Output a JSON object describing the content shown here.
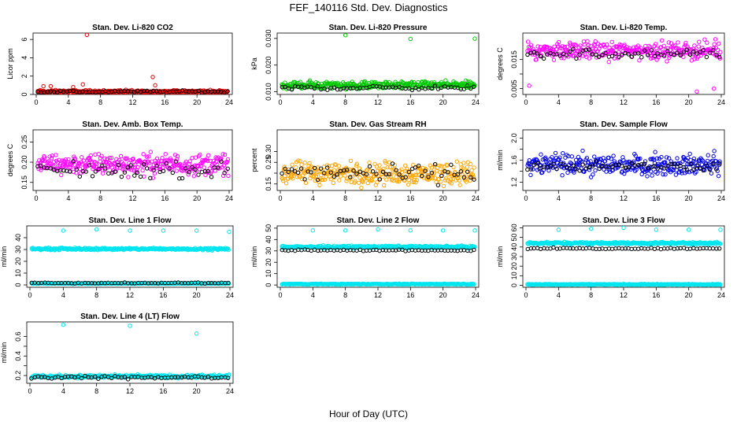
{
  "title": "FEF_140116  Std. Dev. Diagnostics",
  "xlabel": "Hour of Day (UTC)",
  "colors": {
    "red": "#e00000",
    "green": "#00c800",
    "magenta": "#ff00ff",
    "orange": "#ffa500",
    "blue": "#0000e6",
    "cyan": "#00e5ee",
    "black": "#000000"
  },
  "chart_data": [
    {
      "type": "scatter",
      "title": "Stan. Dev. Li-820 CO2",
      "ylabel": "Licor ppm",
      "xlim": [
        0,
        24
      ],
      "ylim": [
        0,
        6.7
      ],
      "xticks": [
        0,
        4,
        8,
        12,
        16,
        20,
        24
      ],
      "yticks": [
        0,
        2,
        4,
        6
      ],
      "xtick_labels": [
        "0",
        "4",
        "8",
        "12",
        "16",
        "20",
        "24"
      ],
      "ytick_labels": [
        "0",
        "2",
        "4",
        "6"
      ],
      "series": [
        {
          "color": "red",
          "base": 0.3,
          "spread": 0.15,
          "outliers": [
            [
              0.9,
              0.9
            ],
            [
              1.8,
              0.9
            ],
            [
              4.6,
              0.8
            ],
            [
              5.8,
              1.1
            ],
            [
              6.3,
              6.5
            ],
            [
              14.5,
              1.9
            ],
            [
              14.8,
              1.0
            ]
          ]
        },
        {
          "color": "black",
          "base": 0.3,
          "spread": 0.1,
          "outliers": []
        }
      ]
    },
    {
      "type": "scatter",
      "title": "Stan. Dev. Li-820 Pressure",
      "ylabel": "kPa",
      "xlim": [
        0,
        24
      ],
      "ylim": [
        0.009,
        0.032
      ],
      "xticks": [
        0,
        4,
        8,
        12,
        16,
        20,
        24
      ],
      "yticks": [
        0.01,
        0.02,
        0.03
      ],
      "xtick_labels": [
        "0",
        "4",
        "8",
        "12",
        "16",
        "20",
        "24"
      ],
      "ytick_labels": [
        "0.010",
        "0.020",
        "0.030"
      ],
      "series": [
        {
          "color": "green",
          "base": 0.0125,
          "spread": 0.0012,
          "outliers": [
            [
              8.0,
              0.0312
            ],
            [
              16.0,
              0.0298
            ],
            [
              23.9,
              0.0299
            ]
          ]
        },
        {
          "color": "black",
          "base": 0.0115,
          "spread": 0.0007,
          "outliers": []
        }
      ]
    },
    {
      "type": "scatter",
      "title": "Stan. Dev. Li-820 Temp.",
      "ylabel": "degrees C",
      "xlim": [
        0,
        24
      ],
      "ylim": [
        0.003,
        0.024
      ],
      "xticks": [
        0,
        4,
        8,
        12,
        16,
        20,
        24
      ],
      "yticks": [
        0.005,
        0.01,
        0.015
      ],
      "xtick_labels": [
        "0",
        "4",
        "8",
        "12",
        "16",
        "20",
        "24"
      ],
      "ytick_labels": [
        "0.005",
        "",
        "0.015"
      ],
      "series": [
        {
          "color": "magenta",
          "base": 0.018,
          "spread": 0.0025,
          "outliers": [
            [
              0.4,
              0.006
            ],
            [
              21.0,
              0.004
            ],
            [
              23.1,
              0.005
            ]
          ]
        },
        {
          "color": "black",
          "base": 0.017,
          "spread": 0.0015,
          "outliers": []
        }
      ]
    },
    {
      "type": "scatter",
      "title": "Stan. Dev. Amb. Box Temp.",
      "ylabel": "degrees C",
      "xlim": [
        0,
        24
      ],
      "ylim": [
        0.13,
        0.28
      ],
      "xticks": [
        0,
        4,
        8,
        12,
        16,
        20,
        24
      ],
      "yticks": [
        0.15,
        0.2,
        0.25
      ],
      "xtick_labels": [
        "0",
        "4",
        "8",
        "12",
        "16",
        "20",
        "24"
      ],
      "ytick_labels": [
        "0.15",
        "0.20",
        "0.25"
      ],
      "series": [
        {
          "color": "magenta",
          "base": 0.195,
          "spread": 0.022,
          "outliers": []
        },
        {
          "color": "black",
          "base": 0.18,
          "spread": 0.016,
          "outliers": []
        }
      ]
    },
    {
      "type": "scatter",
      "title": "Stan. Dev. Gas Stream RH",
      "ylabel": "percent",
      "xlim": [
        0,
        24
      ],
      "ylim": [
        0.12,
        0.4
      ],
      "xticks": [
        0,
        4,
        8,
        12,
        16,
        20,
        24
      ],
      "yticks": [
        0.15,
        0.2,
        0.25,
        0.3
      ],
      "xtick_labels": [
        "0",
        "4",
        "8",
        "12",
        "16",
        "20",
        "24"
      ],
      "ytick_labels": [
        "0.15",
        "",
        "0.25",
        "0.30"
      ],
      "series": [
        {
          "color": "orange",
          "base": 0.2,
          "spread": 0.045,
          "outliers": []
        },
        {
          "color": "black",
          "base": 0.2,
          "spread": 0.035,
          "outliers": []
        }
      ]
    },
    {
      "type": "scatter",
      "title": "Stan. Dev. Sample Flow",
      "ylabel": "ml/min",
      "xlim": [
        0,
        24
      ],
      "ylim": [
        1.05,
        2.15
      ],
      "xticks": [
        0,
        4,
        8,
        12,
        16,
        20,
        24
      ],
      "yticks": [
        1.2,
        1.4,
        1.6,
        1.8,
        2.0
      ],
      "xtick_labels": [
        "0",
        "4",
        "8",
        "12",
        "16",
        "20",
        "24"
      ],
      "ytick_labels": [
        "1.2",
        "",
        "1.6",
        "",
        "2.0"
      ],
      "series": [
        {
          "color": "blue",
          "base": 1.52,
          "spread": 0.16,
          "outliers": []
        },
        {
          "color": "black",
          "base": 1.48,
          "spread": 0.07,
          "outliers": []
        }
      ]
    },
    {
      "type": "scatter",
      "title": "Stan. Dev. Line 1 Flow",
      "ylabel": "ml/min",
      "xlim": [
        0,
        24
      ],
      "ylim": [
        -2,
        50
      ],
      "xticks": [
        0,
        4,
        8,
        12,
        16,
        20,
        24
      ],
      "yticks": [
        0,
        10,
        20,
        30,
        40
      ],
      "xtick_labels": [
        "0",
        "4",
        "8",
        "12",
        "16",
        "20",
        "24"
      ],
      "ytick_labels": [
        "0",
        "10",
        "20",
        "30",
        "40"
      ],
      "series": [
        {
          "color": "cyan",
          "base": 30.5,
          "spread": 0.8,
          "outliers": [
            [
              4.0,
              46
            ],
            [
              8.0,
              47
            ],
            [
              12.0,
              46
            ],
            [
              16.0,
              46
            ],
            [
              20.0,
              46
            ],
            [
              23.9,
              45
            ]
          ]
        },
        {
          "color": "cyan",
          "base": 1.2,
          "spread": 0.3,
          "outliers": []
        },
        {
          "color": "black",
          "base": 1.6,
          "spread": 0.3,
          "outliers": []
        }
      ]
    },
    {
      "type": "scatter",
      "title": "Stan. Dev. Line 2 Flow",
      "ylabel": "ml/min",
      "xlim": [
        0,
        24
      ],
      "ylim": [
        -2,
        52
      ],
      "xticks": [
        0,
        4,
        8,
        12,
        16,
        20,
        24
      ],
      "yticks": [
        0,
        10,
        20,
        30,
        40,
        50
      ],
      "xtick_labels": [
        "0",
        "4",
        "8",
        "12",
        "16",
        "20",
        "24"
      ],
      "ytick_labels": [
        "0",
        "10",
        "20",
        "30",
        "40",
        "50"
      ],
      "series": [
        {
          "color": "cyan",
          "base": 33.5,
          "spread": 0.9,
          "outliers": [
            [
              4.0,
              48
            ],
            [
              8.0,
              48
            ],
            [
              12.0,
              49
            ],
            [
              16.0,
              48
            ],
            [
              20.0,
              48
            ],
            [
              23.9,
              48
            ]
          ]
        },
        {
          "color": "cyan",
          "base": 0.8,
          "spread": 0.3,
          "outliers": []
        },
        {
          "color": "black",
          "base": 30.5,
          "spread": 0.6,
          "outliers": []
        }
      ]
    },
    {
      "type": "scatter",
      "title": "Stan. Dev. Line 3 Flow",
      "ylabel": "ml/min",
      "xlim": [
        0,
        24
      ],
      "ylim": [
        -2,
        62
      ],
      "xticks": [
        0,
        4,
        8,
        12,
        16,
        20,
        24
      ],
      "yticks": [
        0,
        10,
        20,
        30,
        40,
        50,
        60
      ],
      "xtick_labels": [
        "0",
        "4",
        "8",
        "12",
        "16",
        "20",
        "24"
      ],
      "ytick_labels": [
        "0",
        "10",
        "20",
        "30",
        "40",
        "50",
        "60"
      ],
      "series": [
        {
          "color": "cyan",
          "base": 44,
          "spread": 1.0,
          "outliers": [
            [
              4.0,
              58
            ],
            [
              8.0,
              59
            ],
            [
              12.0,
              60
            ],
            [
              16.0,
              58
            ],
            [
              20.0,
              58
            ],
            [
              23.9,
              58
            ]
          ]
        },
        {
          "color": "cyan",
          "base": 1.0,
          "spread": 0.4,
          "outliers": []
        },
        {
          "color": "black",
          "base": 38.5,
          "spread": 0.6,
          "outliers": []
        }
      ]
    },
    {
      "type": "scatter",
      "title": "Stan. Dev. Line 4 (LT) Flow",
      "ylabel": "ml/min",
      "xlim": [
        0,
        24
      ],
      "ylim": [
        0.12,
        0.75
      ],
      "xticks": [
        0,
        4,
        8,
        12,
        16,
        20,
        24
      ],
      "yticks": [
        0.2,
        0.3,
        0.4,
        0.5,
        0.6
      ],
      "xtick_labels": [
        "0",
        "4",
        "8",
        "12",
        "16",
        "20",
        "24"
      ],
      "ytick_labels": [
        "0.2",
        "",
        "0.4",
        "",
        "0.6"
      ],
      "series": [
        {
          "color": "cyan",
          "base": 0.19,
          "spread": 0.014,
          "outliers": [
            [
              4.0,
              0.72
            ],
            [
              12.0,
              0.71
            ],
            [
              20.0,
              0.63
            ]
          ]
        },
        {
          "color": "black",
          "base": 0.18,
          "spread": 0.012,
          "outliers": []
        }
      ]
    }
  ]
}
